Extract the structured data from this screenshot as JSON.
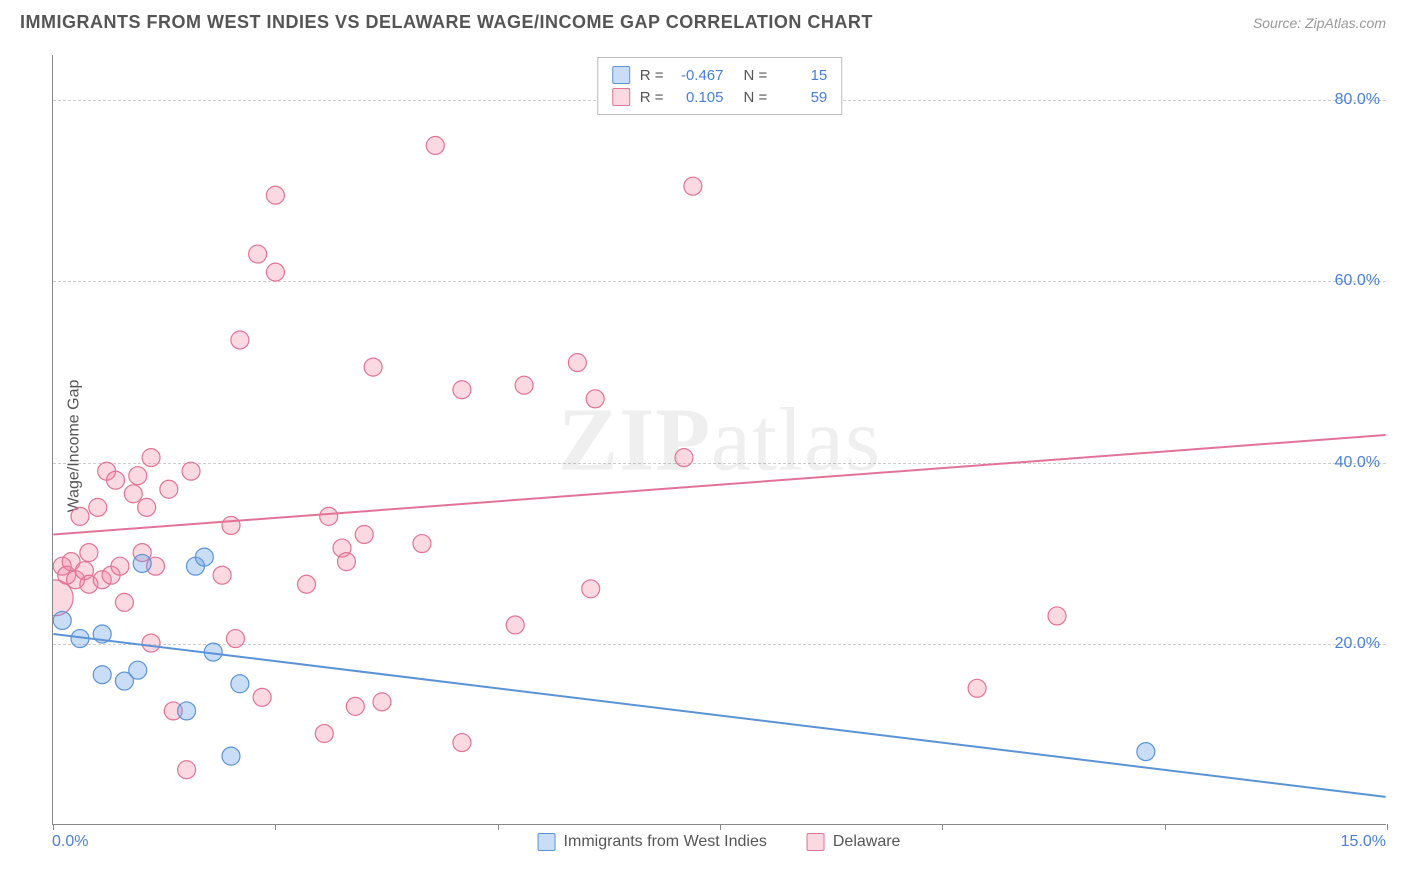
{
  "title": "IMMIGRANTS FROM WEST INDIES VS DELAWARE WAGE/INCOME GAP CORRELATION CHART",
  "source": "Source: ZipAtlas.com",
  "ylabel": "Wage/Income Gap",
  "watermark": {
    "bold": "ZIP",
    "rest": "atlas"
  },
  "chart": {
    "type": "scatter",
    "xlim": [
      0,
      15
    ],
    "ylim": [
      0,
      85
    ],
    "ytick_values": [
      20,
      40,
      60,
      80
    ],
    "ytick_labels": [
      "20.0%",
      "40.0%",
      "60.0%",
      "80.0%"
    ],
    "xtick_values": [
      0,
      2.5,
      5,
      7.5,
      10,
      12.5,
      15
    ],
    "xmin_label": "0.0%",
    "xmax_label": "15.0%",
    "grid_color": "#cccccc",
    "axis_color": "#888888",
    "background": "#ffffff",
    "marker_radius": 9,
    "marker_stroke_width": 1.2,
    "line_width": 2
  },
  "series": {
    "a": {
      "label": "Immigrants from West Indies",
      "fill": "rgba(100,160,230,0.35)",
      "stroke": "#5a93d6",
      "R_label": "R =",
      "R": "-0.467",
      "N_label": "N =",
      "N": "15",
      "line": {
        "x1": 0,
        "y1": 21,
        "x2": 15,
        "y2": 3
      },
      "points": [
        [
          0.1,
          22.5
        ],
        [
          0.3,
          20.5
        ],
        [
          0.55,
          21
        ],
        [
          0.55,
          16.5
        ],
        [
          0.8,
          15.8
        ],
        [
          0.95,
          17
        ],
        [
          1.0,
          28.8
        ],
        [
          1.5,
          12.5
        ],
        [
          1.6,
          28.5
        ],
        [
          1.7,
          29.5
        ],
        [
          1.8,
          19
        ],
        [
          2.0,
          7.5
        ],
        [
          2.1,
          15.5
        ],
        [
          12.3,
          8
        ]
      ]
    },
    "b": {
      "label": "Delaware",
      "fill": "rgba(240,130,160,0.30)",
      "stroke": "#e27396",
      "R_label": "R =",
      "R": "0.105",
      "N_label": "N =",
      "N": "59",
      "line": {
        "x1": 0,
        "y1": 32,
        "x2": 15,
        "y2": 43
      },
      "big_point": [
        0.02,
        25,
        18
      ],
      "points": [
        [
          0.1,
          28.5
        ],
        [
          0.15,
          27.5
        ],
        [
          0.2,
          29
        ],
        [
          0.25,
          27
        ],
        [
          0.3,
          34
        ],
        [
          0.35,
          28
        ],
        [
          0.4,
          26.5
        ],
        [
          0.4,
          30
        ],
        [
          0.5,
          35
        ],
        [
          0.55,
          27
        ],
        [
          0.6,
          39
        ],
        [
          0.65,
          27.5
        ],
        [
          0.7,
          38
        ],
        [
          0.75,
          28.5
        ],
        [
          0.8,
          24.5
        ],
        [
          0.9,
          36.5
        ],
        [
          0.95,
          38.5
        ],
        [
          1.0,
          30
        ],
        [
          1.05,
          35
        ],
        [
          1.1,
          40.5
        ],
        [
          1.1,
          20
        ],
        [
          1.15,
          28.5
        ],
        [
          1.3,
          37
        ],
        [
          1.35,
          12.5
        ],
        [
          1.5,
          6
        ],
        [
          1.55,
          39
        ],
        [
          1.9,
          27.5
        ],
        [
          2.0,
          33
        ],
        [
          2.05,
          20.5
        ],
        [
          2.1,
          53.5
        ],
        [
          2.3,
          63
        ],
        [
          2.35,
          14
        ],
        [
          2.5,
          69.5
        ],
        [
          2.5,
          61
        ],
        [
          2.85,
          26.5
        ],
        [
          3.05,
          10
        ],
        [
          3.1,
          34
        ],
        [
          3.25,
          30.5
        ],
        [
          3.3,
          29
        ],
        [
          3.4,
          13
        ],
        [
          3.5,
          32
        ],
        [
          3.6,
          50.5
        ],
        [
          3.7,
          13.5
        ],
        [
          4.15,
          31
        ],
        [
          4.3,
          75
        ],
        [
          4.6,
          48
        ],
        [
          4.6,
          9
        ],
        [
          5.2,
          22
        ],
        [
          5.3,
          48.5
        ],
        [
          5.9,
          51
        ],
        [
          6.1,
          47
        ],
        [
          6.05,
          26
        ],
        [
          7.1,
          40.5
        ],
        [
          7.2,
          70.5
        ],
        [
          10.4,
          15
        ],
        [
          11.3,
          23
        ]
      ]
    }
  }
}
